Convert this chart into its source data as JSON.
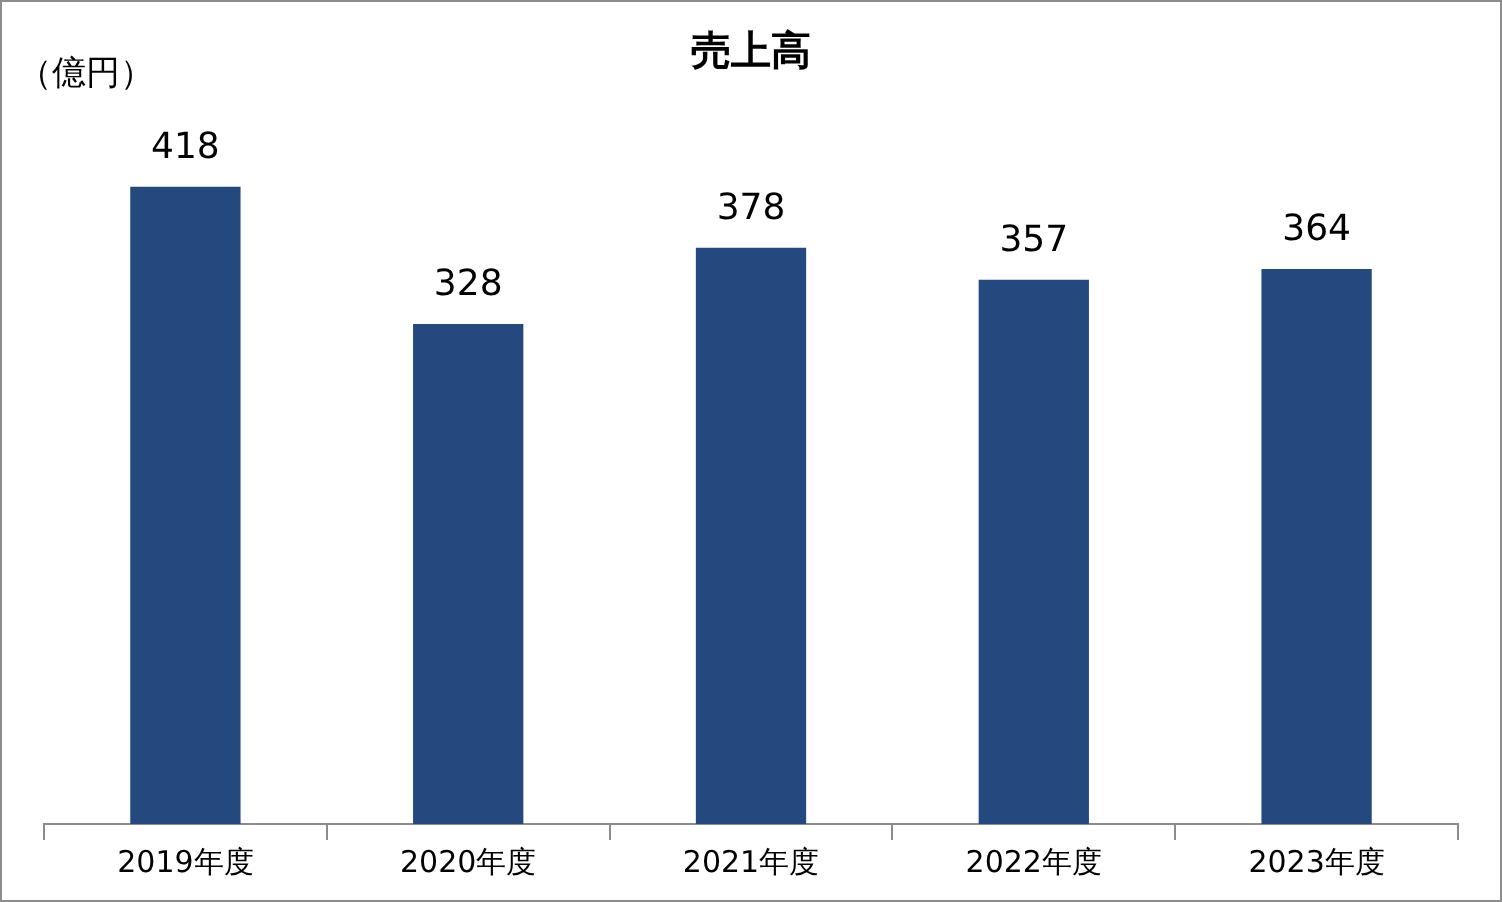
{
  "chart_data": {
    "type": "bar",
    "title": "売上高",
    "ylabel": "（億円）",
    "categories": [
      "2019年度",
      "2020年度",
      "2021年度",
      "2022年度",
      "2023年度"
    ],
    "values": [
      418,
      328,
      378,
      357,
      364
    ],
    "color": "#24497e",
    "data_labels": true,
    "grid": false,
    "legend": false
  }
}
